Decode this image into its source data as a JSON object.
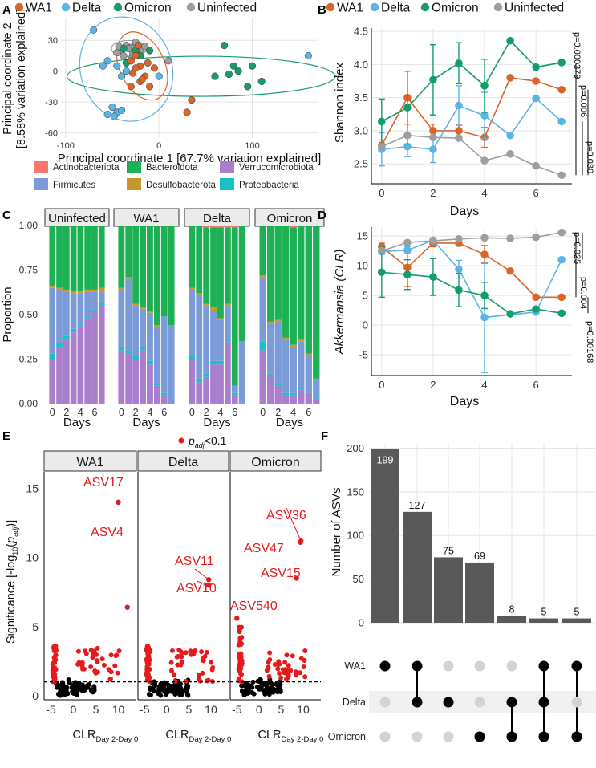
{
  "chart_data": [
    {
      "panel": "A",
      "type": "scatter",
      "xlabel": "Principal coordinate 1 [67.7% variation explained]",
      "ylabel": "Principal coordinate 2 [8.58% variation explained]",
      "xlim": [
        -105,
        170
      ],
      "ylim": [
        -65,
        52
      ],
      "xticks": [
        -100,
        0,
        100
      ],
      "yticks": [
        -60,
        -30,
        0,
        30
      ],
      "legend": [
        "WA1",
        "Delta",
        "Omicron",
        "Uninfected"
      ],
      "points": {
        "WA1": [
          [
            -30,
            10
          ],
          [
            -25,
            15
          ],
          [
            -20,
            5
          ],
          [
            -15,
            -5
          ],
          [
            -20,
            -10
          ],
          [
            -10,
            -15
          ],
          [
            -28,
            -2
          ],
          [
            -22,
            25
          ],
          [
            -12,
            8
          ],
          [
            -5,
            3
          ],
          [
            30,
            -40
          ],
          [
            35,
            -28
          ],
          [
            -30,
            -15
          ],
          [
            -25,
            3
          ],
          [
            -18,
            -8
          ]
        ],
        "Delta": [
          [
            -70,
            40
          ],
          [
            -55,
            10
          ],
          [
            -45,
            5
          ],
          [
            -40,
            -5
          ],
          [
            -50,
            -35
          ],
          [
            -45,
            -40
          ],
          [
            -40,
            -38
          ],
          [
            -55,
            -42
          ],
          [
            -48,
            -44
          ],
          [
            -35,
            0
          ],
          [
            160,
            15
          ],
          [
            -60,
            5
          ],
          [
            0,
            -5
          ],
          [
            -30,
            12
          ]
        ],
        "Omicron": [
          [
            -35,
            8
          ],
          [
            70,
            25
          ],
          [
            80,
            5
          ],
          [
            60,
            -5
          ],
          [
            85,
            0
          ],
          [
            100,
            5
          ],
          [
            110,
            -10
          ],
          [
            95,
            -15
          ],
          [
            75,
            -3
          ],
          [
            -38,
            22
          ],
          [
            -20,
            15
          ],
          [
            -10,
            20
          ],
          [
            -25,
            20
          ]
        ],
        "Uninfected": [
          [
            -40,
            20
          ],
          [
            -35,
            25
          ],
          [
            -30,
            23
          ],
          [
            -45,
            18
          ],
          [
            -25,
            28
          ],
          [
            -33,
            22
          ],
          [
            -38,
            15
          ],
          [
            -20,
            20
          ],
          [
            -28,
            17
          ],
          [
            -43,
            24
          ],
          [
            10,
            10
          ],
          [
            -15,
            24
          ]
        ]
      }
    },
    {
      "panel": "B",
      "type": "line",
      "xlabel": "Days",
      "ylabel": "Shannon index",
      "xlim": [
        -0.4,
        7.4
      ],
      "ylim": [
        2.2,
        4.55
      ],
      "xticks": [
        0,
        2,
        4,
        6
      ],
      "yticks": [
        2.5,
        3.0,
        3.5,
        4.0,
        4.5
      ],
      "legend": [
        "WA1",
        "Delta",
        "Omicron",
        "Uninfected"
      ],
      "series": [
        {
          "name": "WA1",
          "x": [
            0,
            1,
            2,
            3,
            4,
            5,
            6,
            7
          ],
          "y": [
            2.78,
            3.5,
            3.0,
            3.0,
            2.9,
            3.8,
            3.75,
            3.62
          ],
          "err": [
            0.08,
            0.4,
            0.1,
            0.1,
            0.15,
            0,
            0,
            0
          ]
        },
        {
          "name": "Delta",
          "x": [
            0,
            1,
            2,
            3,
            4,
            5,
            6,
            7
          ],
          "y": [
            2.72,
            2.76,
            2.72,
            3.38,
            3.23,
            2.93,
            3.49,
            3.14
          ],
          "err": [
            0.25,
            0.15,
            0.2,
            0.3,
            0.35,
            0,
            0,
            0
          ]
        },
        {
          "name": "Omicron",
          "x": [
            0,
            1,
            2,
            3,
            4,
            5,
            6,
            7
          ],
          "y": [
            3.14,
            3.35,
            3.77,
            4.02,
            3.68,
            4.36,
            3.96,
            4.03
          ],
          "err": [
            0.34,
            0.55,
            0.53,
            0.31,
            0.4,
            0,
            0,
            0
          ]
        },
        {
          "name": "Uninfected",
          "x": [
            0,
            1,
            2,
            3,
            4,
            5,
            6,
            7
          ],
          "y": [
            2.76,
            2.93,
            2.9,
            2.89,
            2.55,
            2.65,
            2.47,
            2.33
          ],
          "err": [
            0,
            0,
            0,
            0,
            0,
            0,
            0,
            0
          ]
        }
      ],
      "pvalues": [
        "p=0.000379",
        "p=0.006",
        "p=0.030"
      ]
    },
    {
      "panel": "C",
      "type": "bar",
      "xlabel": "Days",
      "ylabel": "Proportion",
      "ylim": [
        0,
        1
      ],
      "yticks": [
        0.0,
        0.25,
        0.5,
        0.75,
        1.0
      ],
      "xticks": [
        0,
        2,
        4,
        6
      ],
      "legend": [
        "Actinobacteriota",
        "Bacteroidota",
        "Verrucomicrobiota",
        "Firmicutes",
        "Desulfobacterota",
        "Proteobacteria"
      ],
      "legend_colors": [
        "#F8766D",
        "#1DB054",
        "#A97ECC",
        "#7B9AD8",
        "#C49A2C",
        "#19C0C8"
      ],
      "stack_order": [
        "Verrucomicrobiota",
        "Proteobacteria",
        "Firmicutes",
        "Desulfobacterota",
        "Bacteroidota",
        "Actinobacteriota"
      ],
      "facets": [
        {
          "name": "Uninfected",
          "bars": [
            [
              0.25,
              0.03,
              0.37,
              0.01,
              0.34,
              0
            ],
            [
              0.32,
              0.02,
              0.3,
              0.01,
              0.35,
              0
            ],
            [
              0.36,
              0.02,
              0.25,
              0.01,
              0.36,
              0
            ],
            [
              0.4,
              0.02,
              0.2,
              0.01,
              0.37,
              0
            ],
            [
              0.44,
              0.01,
              0.17,
              0.01,
              0.37,
              0
            ],
            [
              0.48,
              0.01,
              0.14,
              0.01,
              0.36,
              0
            ],
            [
              0.52,
              0.01,
              0.1,
              0.01,
              0.36,
              0
            ],
            [
              0.55,
              0.02,
              0.06,
              0.02,
              0.35,
              0
            ]
          ]
        },
        {
          "name": "WA1",
          "bars": [
            [
              0.3,
              0.02,
              0.32,
              0.01,
              0.35,
              0
            ],
            [
              0.28,
              0.02,
              0.4,
              0.01,
              0.29,
              0
            ],
            [
              0.25,
              0.02,
              0.28,
              0.01,
              0.44,
              0
            ],
            [
              0.3,
              0.02,
              0.21,
              0.01,
              0.46,
              0
            ],
            [
              0.22,
              0.02,
              0.27,
              0.01,
              0.48,
              0
            ],
            [
              0.1,
              0.01,
              0.32,
              0.01,
              0.56,
              0
            ],
            [
              0.05,
              0.01,
              0.43,
              0,
              0.51,
              0
            ],
            [
              0,
              0,
              0.44,
              0,
              0.56,
              0
            ]
          ]
        },
        {
          "name": "Delta",
          "bars": [
            [
              0.25,
              0.02,
              0.37,
              0.01,
              0.35,
              0
            ],
            [
              0.12,
              0.02,
              0.47,
              0.01,
              0.38,
              0
            ],
            [
              0.15,
              0.02,
              0.38,
              0.01,
              0.43,
              0.01
            ],
            [
              0.22,
              0.02,
              0.28,
              0.02,
              0.45,
              0.01
            ],
            [
              0.22,
              0.02,
              0.23,
              0.01,
              0.51,
              0.01
            ],
            [
              0.35,
              0.01,
              0.19,
              0.01,
              0.43,
              0.01
            ],
            [
              0.05,
              0.01,
              0.04,
              0,
              0.89,
              0.01
            ],
            [
              0,
              0,
              0.35,
              0,
              0.65,
              0
            ]
          ]
        },
        {
          "name": "Omicron",
          "bars": [
            [
              0.3,
              0.05,
              0.36,
              0.01,
              0.28,
              0
            ],
            [
              0.16,
              0.01,
              0.28,
              0.01,
              0.54,
              0
            ],
            [
              0.1,
              0.01,
              0.35,
              0.01,
              0.53,
              0
            ],
            [
              0.05,
              0.01,
              0.3,
              0.01,
              0.63,
              0
            ],
            [
              0.05,
              0.01,
              0.26,
              0.01,
              0.66,
              0.01
            ],
            [
              0.08,
              0.01,
              0.26,
              0.01,
              0.64,
              0
            ],
            [
              0.06,
              0.01,
              0.2,
              0.01,
              0.72,
              0
            ],
            [
              0.03,
              0.01,
              0.1,
              0,
              0.86,
              0
            ]
          ]
        }
      ]
    },
    {
      "panel": "D",
      "type": "line",
      "xlabel": "Days",
      "ylabel": "Akkermansia (CLR)",
      "xlim": [
        -0.4,
        7.4
      ],
      "ylim": [
        -8.5,
        16.5
      ],
      "xticks": [
        0,
        2,
        4,
        6
      ],
      "yticks": [
        -5,
        0,
        5,
        10,
        15
      ],
      "series": [
        {
          "name": "WA1",
          "x": [
            0,
            1,
            2,
            3,
            4,
            5,
            6,
            7
          ],
          "y": [
            13.2,
            9.7,
            13.8,
            13.8,
            11.9,
            9.1,
            4.7,
            4.7
          ],
          "err": [
            0.6,
            3.2,
            0.6,
            0.5,
            1.5,
            0,
            0,
            0
          ]
        },
        {
          "name": "Delta",
          "x": [
            0,
            1,
            2,
            3,
            4,
            5,
            6,
            7
          ],
          "y": [
            12.4,
            12.6,
            14.3,
            9.4,
            1.3,
            null,
            2.2,
            11.0
          ],
          "err": [
            0.5,
            0.6,
            0.4,
            1.5,
            9.3,
            0,
            0,
            0
          ]
        },
        {
          "name": "Omicron",
          "x": [
            0,
            1,
            2,
            3,
            4,
            5,
            6,
            7
          ],
          "y": [
            8.9,
            8.5,
            8.1,
            5.9,
            5.0,
            1.9,
            2.7,
            2.0
          ],
          "err": [
            4.2,
            2.5,
            3.1,
            2.8,
            2.2,
            0,
            0,
            0
          ]
        },
        {
          "name": "Uninfected",
          "x": [
            0,
            1,
            2,
            3,
            4,
            5,
            6,
            7
          ],
          "y": [
            12.5,
            13.9,
            14.2,
            14.5,
            14.7,
            14.6,
            14.8,
            15.6
          ],
          "err": [
            0,
            0,
            0,
            0,
            0,
            0,
            0,
            0
          ]
        }
      ],
      "pvalues": [
        "p=0.025",
        "p=0.004",
        "p=0.00168"
      ]
    },
    {
      "panel": "E",
      "type": "scatter",
      "xlabel": "CLR",
      "xlabel_sub": "Day 2-Day 0",
      "ylabel": "Significance [-log10(p adj)]",
      "legend": "p adj < 0.1",
      "xlim": [
        -6.5,
        14
      ],
      "ylim": [
        -0.3,
        16.2
      ],
      "xticks": [
        -5,
        0,
        5,
        10
      ],
      "yticks": [
        0,
        5,
        10,
        15
      ],
      "threshold": 1,
      "facets": [
        {
          "name": "WA1",
          "labels": [
            {
              "text": "ASV17",
              "x": 10,
              "y": 14
            },
            {
              "text": "ASV4",
              "x": 12,
              "y": 6.4
            }
          ]
        },
        {
          "name": "Delta",
          "labels": [
            {
              "text": "ASV11",
              "x": 9.5,
              "y": 8.4
            },
            {
              "text": "ASV10",
              "x": 9.5,
              "y": 8.0
            }
          ]
        },
        {
          "name": "Omicron",
          "labels": [
            {
              "text": "ASV36",
              "x": 9.5,
              "y": 11.2
            },
            {
              "text": "ASV47",
              "x": 9.4,
              "y": 11.1
            },
            {
              "text": "ASV15",
              "x": 8.5,
              "y": 8.5
            },
            {
              "text": "ASV540",
              "x": -5,
              "y": 5.6
            }
          ]
        }
      ]
    },
    {
      "panel": "F",
      "type": "bar",
      "ylabel": "Number of ASVs",
      "ylim": [
        0,
        205
      ],
      "yticks": [
        0,
        50,
        100,
        150,
        200
      ],
      "values": [
        199,
        127,
        75,
        69,
        8,
        5,
        5
      ],
      "sets": [
        "WA1",
        "Delta",
        "Omicron"
      ],
      "membership": [
        [
          1,
          0,
          0
        ],
        [
          1,
          1,
          0
        ],
        [
          0,
          1,
          0
        ],
        [
          0,
          0,
          1
        ],
        [
          0,
          1,
          1
        ],
        [
          1,
          1,
          1
        ],
        [
          1,
          0,
          1
        ]
      ]
    }
  ],
  "panel_letters": [
    "A",
    "B",
    "C",
    "D",
    "E",
    "F"
  ],
  "colors": {
    "WA1": "#D9652B",
    "Delta": "#5BB4E5",
    "Omicron": "#159C6A",
    "Uninfected": "#9E9E9E",
    "sig": "#E41A1C",
    "bar": "#595959"
  },
  "e_labels": {
    "legend_sub": "adj",
    "thresh_note": ""
  }
}
